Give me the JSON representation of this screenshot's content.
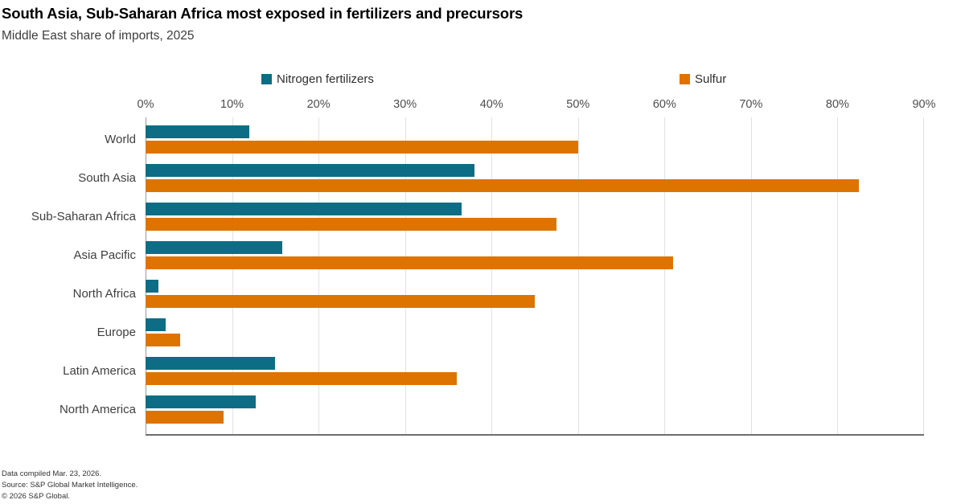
{
  "header": {
    "title": "South Asia, Sub-Saharan Africa most exposed in fertilizers and precursors",
    "subtitle": "Middle East share of imports, 2025"
  },
  "legend": [
    {
      "label": "Nitrogen fertilizers",
      "color": "#0d6d84"
    },
    {
      "label": "Sulfur",
      "color": "#dd7400"
    }
  ],
  "chart_data": {
    "type": "bar",
    "orientation": "horizontal",
    "title": "South Asia, Sub-Saharan Africa most exposed in fertilizers and precursors",
    "subtitle": "Middle East share of imports, 2025",
    "categories": [
      "World",
      "South Asia",
      "Sub-Saharan Africa",
      "Asia Pacific",
      "North Africa",
      "Europe",
      "Latin America",
      "North America"
    ],
    "series": [
      {
        "name": "Nitrogen fertilizers",
        "color": "#0d6d84",
        "values": [
          12,
          38,
          36.5,
          15.8,
          1.5,
          2.3,
          15,
          12.7
        ]
      },
      {
        "name": "Sulfur",
        "color": "#dd7400",
        "values": [
          50,
          82.5,
          47.5,
          61,
          45,
          4,
          36,
          9
        ]
      }
    ],
    "xlim": [
      0,
      90
    ],
    "x_ticks": [
      "0%",
      "10%",
      "20%",
      "30%",
      "40%",
      "50%",
      "60%",
      "70%",
      "80%",
      "90%"
    ],
    "grid": "vertical",
    "legend_position": "top"
  },
  "footer": {
    "compiled": "Data compiled Mar. 23, 2026.",
    "source": "Source: S&P Global Market Intelligence.",
    "copyright": "© 2026 S&P Global."
  }
}
